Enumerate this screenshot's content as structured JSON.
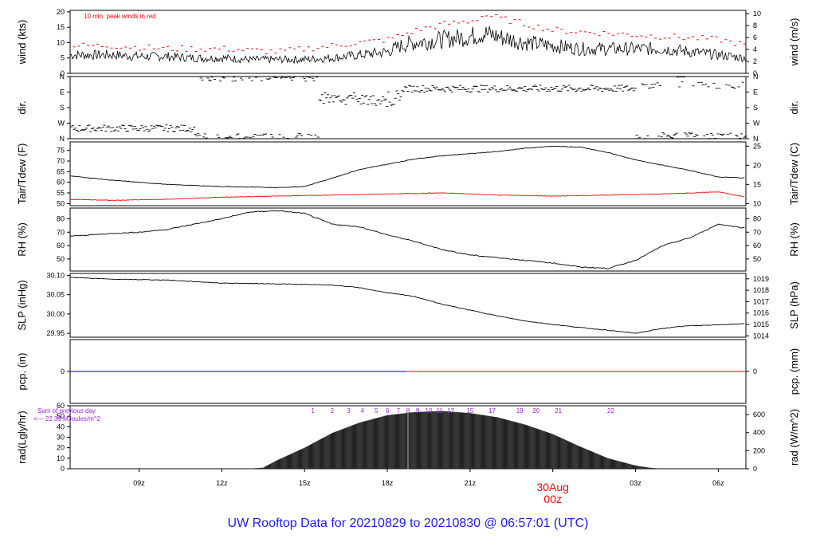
{
  "title": "UW Rooftop Data for 20210829  to  20210830 @ 06:57:01  (UTC)",
  "colors": {
    "line": "#000000",
    "red": "#ff0000",
    "blue": "#0000cc",
    "purple": "#a020f0",
    "title": "#1a1aff"
  },
  "chart_data": [
    {
      "id": "wind",
      "type": "line",
      "ylabel_left": "wind (kts)",
      "ylabel_right": "wind (m/s)",
      "left_ticks": [
        "0",
        "5",
        "10",
        "15",
        "20"
      ],
      "right_ticks": [
        "0",
        "2",
        "4",
        "6",
        "8",
        "10"
      ],
      "ylim": [
        0,
        20.5
      ],
      "annotation": "10 min. peak winds in red",
      "series": [
        {
          "color": "#000000",
          "x_hours": [
            6.5,
            8,
            9,
            10,
            11,
            12,
            13,
            14,
            15,
            16,
            17,
            18,
            18.5,
            19,
            20,
            21,
            21.5,
            22,
            23,
            24,
            25,
            26,
            27,
            28,
            29,
            30,
            31
          ],
          "values": [
            6,
            6,
            5.5,
            5.5,
            5,
            5,
            4.5,
            4.5,
            4.5,
            5,
            6,
            7,
            9,
            10,
            11,
            12,
            13,
            12,
            10,
            9,
            8,
            8,
            8,
            8,
            7,
            6,
            5
          ]
        },
        {
          "color": "#ff0000",
          "style": "dashes",
          "x_hours": [
            6.5,
            8,
            10,
            12,
            14,
            16,
            18,
            19,
            20,
            21,
            21.5,
            22,
            23,
            24,
            26,
            28,
            30,
            31
          ],
          "values": [
            9,
            9,
            8,
            8,
            7,
            9,
            11,
            14,
            16,
            17,
            19,
            18,
            16,
            14,
            13,
            12,
            11,
            9
          ]
        }
      ]
    },
    {
      "id": "dir",
      "type": "scatter",
      "ylabel_left": "dir.",
      "ylabel_right": "dir.",
      "left_ticks": [
        "N",
        "E",
        "S",
        "W",
        "N"
      ],
      "right_ticks": [
        "N",
        "E",
        "S",
        "W",
        "N"
      ],
      "ylim": [
        0,
        360
      ]
    },
    {
      "id": "temp",
      "type": "line",
      "ylabel_left": "Tair/Tdew (F)",
      "ylabel_right": "Tair/Tdew (C)",
      "left_ticks": [
        "50",
        "55",
        "60",
        "65",
        "70",
        "75"
      ],
      "right_ticks": [
        "10",
        "15",
        "20",
        "25"
      ],
      "ylim": [
        49,
        79
      ],
      "series": [
        {
          "color": "#000000",
          "x_hours": [
            6.5,
            8,
            10,
            12,
            14,
            15,
            16,
            17,
            18,
            19,
            20,
            21,
            22,
            23,
            24,
            25,
            26,
            27,
            28,
            29,
            30,
            31
          ],
          "values": [
            63,
            61,
            59,
            58,
            57.5,
            58,
            62,
            66,
            68.5,
            71,
            72.5,
            73.5,
            74.5,
            76,
            77,
            76.5,
            74,
            70.5,
            68,
            65.5,
            62.5,
            62
          ]
        },
        {
          "color": "#ff0000",
          "x_hours": [
            6.5,
            8,
            10,
            12,
            14,
            16,
            18,
            20,
            22,
            24,
            26,
            28,
            30,
            31
          ],
          "values": [
            52,
            51.5,
            52,
            53,
            53.5,
            54,
            54.5,
            55,
            54,
            53.5,
            54,
            54.5,
            55.5,
            53
          ]
        }
      ]
    },
    {
      "id": "rh",
      "type": "line",
      "ylabel_left": "RH (%)",
      "ylabel_right": "RH (%)",
      "left_ticks": [
        "50",
        "60",
        "70",
        "80"
      ],
      "right_ticks": [
        "50",
        "60",
        "70",
        "80"
      ],
      "ylim": [
        41,
        88
      ],
      "series": [
        {
          "color": "#000000",
          "x_hours": [
            6.5,
            8,
            9,
            10,
            11,
            12,
            13,
            14,
            15,
            16,
            17,
            18,
            19,
            20,
            21,
            22,
            23,
            24,
            25,
            26,
            27,
            28,
            29,
            30,
            31
          ],
          "values": [
            67,
            69,
            70,
            72,
            76,
            80,
            85,
            86,
            84,
            76,
            74,
            68,
            63,
            57,
            53,
            51,
            49,
            47,
            44,
            43,
            49,
            60,
            66,
            76,
            73
          ]
        }
      ]
    },
    {
      "id": "slp",
      "type": "line",
      "ylabel_left": "SLP (inHg)",
      "ylabel_right": "SLP (hPa)",
      "left_ticks": [
        "29.95",
        "30.00",
        "30.05",
        "30.10"
      ],
      "right_ticks": [
        "1014",
        "1015",
        "1016",
        "1017",
        "1018",
        "1019"
      ],
      "ylim": [
        29.94,
        30.105
      ],
      "series": [
        {
          "color": "#000000",
          "x_hours": [
            6.5,
            8,
            10,
            12,
            14,
            16,
            17,
            18,
            19,
            20,
            21,
            22,
            23,
            24,
            25,
            26,
            27,
            28,
            29,
            30,
            31
          ],
          "values": [
            30.095,
            30.09,
            30.088,
            30.08,
            30.078,
            30.075,
            30.068,
            30.055,
            30.045,
            30.025,
            30.01,
            29.995,
            29.982,
            29.973,
            29.965,
            29.958,
            29.95,
            29.963,
            29.97,
            29.972,
            29.975
          ]
        }
      ]
    },
    {
      "id": "pcp",
      "type": "line",
      "ylabel_left": "pcp. (in)",
      "ylabel_right": "pcp. (mm)",
      "left_ticks": [
        "0"
      ],
      "right_ticks": [
        "0"
      ],
      "ylim": [
        -1,
        1
      ],
      "series": [
        {
          "color": "#0000cc",
          "x_hours": [
            6.5,
            18.7
          ],
          "values": [
            0,
            0
          ]
        },
        {
          "color": "#ff0000",
          "x_hours": [
            18.7,
            31
          ],
          "values": [
            0,
            0
          ]
        }
      ]
    },
    {
      "id": "rad",
      "type": "area",
      "ylabel_left": "rad(Lgly/hr)",
      "ylabel_right": "rad (W/m^2)",
      "left_ticks": [
        "0",
        "10",
        "20",
        "30",
        "40",
        "50",
        "60"
      ],
      "right_ticks": [
        "0",
        "200",
        "400",
        "600"
      ],
      "ylim": [
        0,
        60
      ],
      "annotation": [
        "Sum of previous day",
        "<--- 22.33 MJoules/m^2"
      ],
      "hour_markers": [
        "1",
        "2",
        "3",
        "4",
        "5",
        "6",
        "7",
        "8",
        "9",
        "10",
        "11",
        "12",
        "15",
        "17",
        "19",
        "20",
        "21",
        "22"
      ],
      "series": [
        {
          "color": "#222222",
          "x_hours": [
            12.9,
            13.5,
            14,
            15,
            16,
            17,
            18,
            19,
            20,
            21,
            22,
            23,
            24,
            25,
            26,
            27,
            27.5,
            28
          ],
          "values": [
            0,
            1,
            8,
            20,
            34,
            44,
            51,
            54,
            55,
            53,
            49,
            42,
            33,
            21,
            10,
            3,
            1,
            0
          ]
        }
      ]
    }
  ],
  "x_axis": {
    "start_hour": 6.5,
    "end_hour": 31,
    "ticks": [
      {
        "hour": 9,
        "label": "09z"
      },
      {
        "hour": 12,
        "label": "12z"
      },
      {
        "hour": 15,
        "label": "15z"
      },
      {
        "hour": 18,
        "label": "18z"
      },
      {
        "hour": 21,
        "label": "21z"
      },
      {
        "hour": 27,
        "label": "03z"
      },
      {
        "hour": 30,
        "label": "06z"
      }
    ],
    "day_change": {
      "hour": 24,
      "date": "30Aug",
      "label": "00z"
    }
  }
}
